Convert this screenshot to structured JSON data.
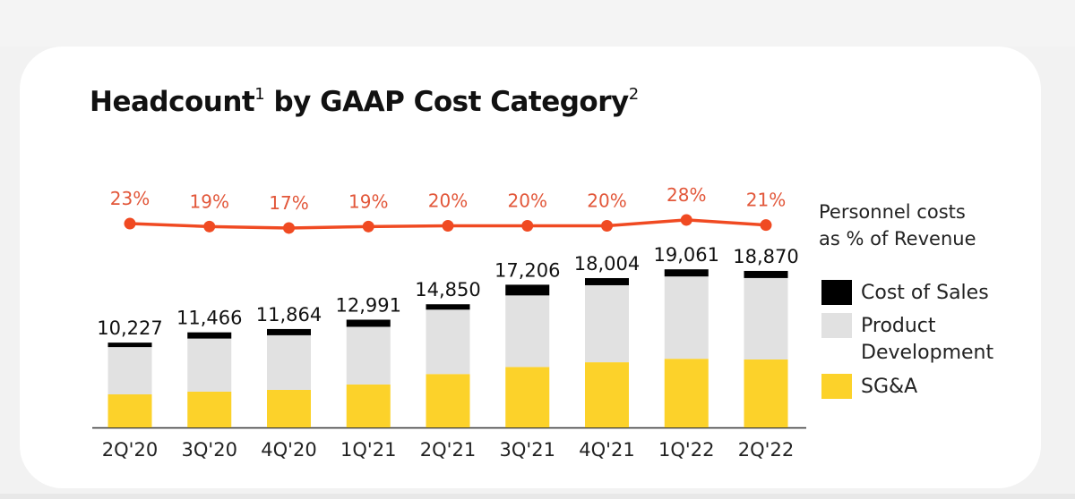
{
  "title": "Headcount",
  "title_sup1": "1",
  "title_mid": " by GAAP Cost Category",
  "title_sup2": "2",
  "colors": {
    "cost_of_sales": "#000000",
    "product_development": "#e1e1e1",
    "sga": "#fcd22a",
    "line": "#f04a22",
    "line_label": "#e2573a"
  },
  "chart_data": {
    "type": "bar",
    "stacked": true,
    "title": "Headcount by GAAP Cost Category",
    "categories": [
      "2Q'20",
      "3Q'20",
      "4Q'20",
      "1Q'21",
      "2Q'21",
      "3Q'21",
      "4Q'21",
      "1Q'22",
      "2Q'22"
    ],
    "totals": [
      10227,
      11466,
      11864,
      12991,
      14850,
      17206,
      18004,
      19061,
      18870
    ],
    "total_labels": [
      "10,227",
      "11,466",
      "11,864",
      "12,991",
      "14,850",
      "17,206",
      "18,004",
      "19,061",
      "18,870"
    ],
    "series": [
      {
        "name": "SG&A",
        "values": [
          3990,
          4320,
          4530,
          5180,
          6440,
          7290,
          7860,
          8280,
          8200
        ]
      },
      {
        "name": "Product Development",
        "values": [
          5700,
          6396,
          6584,
          6951,
          7760,
          8626,
          9284,
          9921,
          9810
        ]
      },
      {
        "name": "Cost of Sales",
        "values": [
          537,
          750,
          750,
          860,
          650,
          1290,
          860,
          860,
          860
        ]
      }
    ],
    "line_series": {
      "name": "Personnel costs as % of Revenue",
      "values": [
        23,
        19,
        17,
        19,
        20,
        20,
        20,
        28,
        21
      ],
      "labels": [
        "23%",
        "19%",
        "17%",
        "19%",
        "20%",
        "20%",
        "20%",
        "28%",
        "21%"
      ]
    },
    "ylim": [
      0,
      20000
    ],
    "grid": false,
    "legend_position": "right",
    "xlabel": "",
    "ylabel": ""
  },
  "legend": {
    "line_label_1": "Personnel costs",
    "line_label_2": "as % of Revenue",
    "cost_of_sales": "Cost of Sales",
    "product_development_1": "Product",
    "product_development_2": "Development",
    "sga": "SG&A"
  }
}
